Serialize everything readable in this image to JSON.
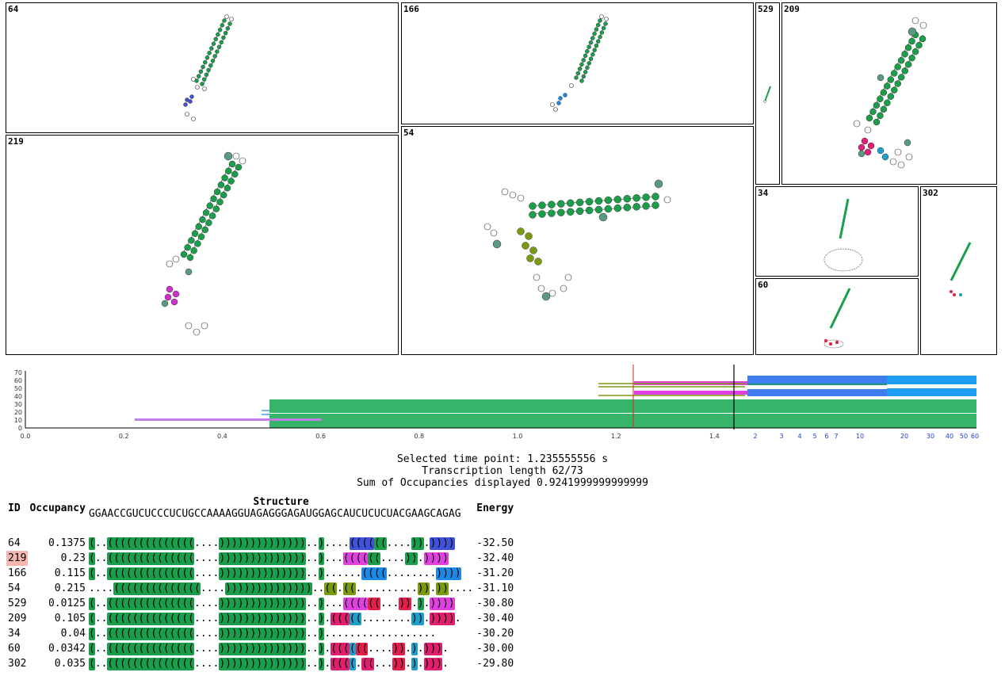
{
  "panels": [
    {
      "id": "64",
      "helix_colors": [
        "#1a9e4b",
        "#3f51d6",
        "#58a020"
      ]
    },
    {
      "id": "166",
      "helix_colors": [
        "#1a9e4b",
        "#1e88e5"
      ]
    },
    {
      "id": "529",
      "helix_colors": [
        "#1a9e4b"
      ]
    },
    {
      "id": "209",
      "helix_colors": [
        "#1a9e4b",
        "#e01e7c",
        "#1e9ec8"
      ]
    },
    {
      "id": "219",
      "helix_colors": [
        "#1a9e4b",
        "#cc33cc"
      ]
    },
    {
      "id": "54",
      "helix_colors": [
        "#1a9e4b",
        "#7a9a10"
      ]
    },
    {
      "id": "34",
      "helix_colors": [
        "#1a9e4b"
      ]
    },
    {
      "id": "302",
      "helix_colors": [
        "#1a9e4b",
        "#e0204a",
        "#1e9ec8"
      ]
    },
    {
      "id": "60",
      "helix_colors": [
        "#1a9e4b",
        "#e0204a"
      ]
    }
  ],
  "timeline": {
    "y_ticks": [
      "0",
      "10",
      "20",
      "30",
      "40",
      "50",
      "60",
      "70"
    ],
    "x_ticks_linear": [
      "0.0",
      "0.2",
      "0.4",
      "0.6",
      "0.8",
      "1.0",
      "1.2",
      "1.4"
    ],
    "x_ticks_log": [
      "2",
      "3",
      "4",
      "5",
      "6",
      "7",
      "10",
      "20",
      "30",
      "40",
      "50",
      "60"
    ],
    "selected_time": 1.235555556
  },
  "info": {
    "selected_label": "Selected time point: 1.235555556 s",
    "length_label": "Transcription length 62/73",
    "sum_label": "Sum of Occupancies displayed 0.9241999999999999"
  },
  "table": {
    "col_id": "ID",
    "col_occ": "Occupancy",
    "col_structure": "Structure",
    "sequence": "GGAACCGUCUCCCUCUGCCAAAAGGUAGAGGGAGAUGGAGCAUCUCUCUACGAAGCAGAG",
    "col_energy": "Energy",
    "highlight_id": "219",
    "rows": [
      {
        "id": "64",
        "occ": "0.1375",
        "energy": "-32.50",
        "segs": [
          [
            "(",
            "#1a9e4b"
          ],
          [
            "..",
            ""
          ],
          [
            "((((((((((((((",
            "#1a9e4b"
          ],
          [
            "....",
            ""
          ],
          [
            "))))))))))))))",
            "#1a9e4b"
          ],
          [
            "..",
            ""
          ],
          [
            ")",
            "#1a9e4b"
          ],
          [
            "....",
            ""
          ],
          [
            "((((",
            "#3f51d6"
          ],
          [
            "((",
            "#1a9e4b"
          ],
          [
            "....",
            ""
          ],
          [
            "))",
            "#1a9e4b"
          ],
          [
            ".",
            ""
          ],
          [
            "))))",
            "#3f51d6"
          ]
        ]
      },
      {
        "id": "219",
        "occ": "0.23",
        "energy": "-32.40",
        "segs": [
          [
            "(",
            "#1a9e4b"
          ],
          [
            "..",
            ""
          ],
          [
            "((((((((((((((",
            "#1a9e4b"
          ],
          [
            "....",
            ""
          ],
          [
            "))))))))))))))",
            "#1a9e4b"
          ],
          [
            "..",
            ""
          ],
          [
            ")",
            "#1a9e4b"
          ],
          [
            "...",
            ""
          ],
          [
            "((((",
            "#e040e0"
          ],
          [
            "((",
            "#1a9e4b"
          ],
          [
            "....",
            ""
          ],
          [
            "))",
            "#1a9e4b"
          ],
          [
            ".",
            ""
          ],
          [
            "))))",
            "#e040e0"
          ]
        ]
      },
      {
        "id": "166",
        "occ": "0.115",
        "energy": "-31.20",
        "segs": [
          [
            "(",
            "#1a9e4b"
          ],
          [
            "..",
            ""
          ],
          [
            "((((((((((((((",
            "#1a9e4b"
          ],
          [
            "....",
            ""
          ],
          [
            "))))))))))))))",
            "#1a9e4b"
          ],
          [
            "..",
            ""
          ],
          [
            ")",
            "#1a9e4b"
          ],
          [
            "......",
            ""
          ],
          [
            "((((",
            "#1e88e5"
          ],
          [
            "........",
            ""
          ],
          [
            "))))",
            "#1e88e5"
          ]
        ]
      },
      {
        "id": "54",
        "occ": "0.215",
        "energy": "-31.10",
        "segs": [
          [
            "....",
            ""
          ],
          [
            "((((((((((((((",
            "#1a9e4b"
          ],
          [
            "....",
            ""
          ],
          [
            "))))))))))))))",
            "#1a9e4b"
          ],
          [
            "..",
            ""
          ],
          [
            "((",
            "#7a9a10"
          ],
          [
            ".",
            ""
          ],
          [
            "((",
            "#7a9a10"
          ],
          [
            "..........",
            ""
          ],
          [
            "))",
            "#7a9a10"
          ],
          [
            ".",
            ""
          ],
          [
            "))",
            "#7a9a10"
          ],
          [
            "....",
            ""
          ]
        ]
      },
      {
        "id": "529",
        "occ": "0.0125",
        "energy": "-30.80",
        "segs": [
          [
            "(",
            "#1a9e4b"
          ],
          [
            "..",
            ""
          ],
          [
            "((((((((((((((",
            "#1a9e4b"
          ],
          [
            "....",
            ""
          ],
          [
            "))))))))))))))",
            "#1a9e4b"
          ],
          [
            "..",
            ""
          ],
          [
            ")",
            "#1a9e4b"
          ],
          [
            "...",
            ""
          ],
          [
            "((((",
            "#e040e0"
          ],
          [
            "((",
            "#e0204a"
          ],
          [
            "...",
            ""
          ],
          [
            "))",
            "#e0204a"
          ],
          [
            ".",
            ""
          ],
          [
            ")",
            "#1a9e4b"
          ],
          [
            ".",
            ""
          ],
          [
            "))))",
            "#e040e0"
          ]
        ]
      },
      {
        "id": "209",
        "occ": "0.105",
        "energy": "-30.40",
        "segs": [
          [
            "(",
            "#1a9e4b"
          ],
          [
            "..",
            ""
          ],
          [
            "((((((((((((((",
            "#1a9e4b"
          ],
          [
            "....",
            ""
          ],
          [
            "))))))))))))))",
            "#1a9e4b"
          ],
          [
            "..",
            ""
          ],
          [
            ")",
            "#1a9e4b"
          ],
          [
            ".",
            ""
          ],
          [
            "(((",
            "#e0206e"
          ],
          [
            "((",
            "#1e9ec8"
          ],
          [
            "........",
            ""
          ],
          [
            "))",
            "#1e9ec8"
          ],
          [
            ".",
            ""
          ],
          [
            "))))",
            "#e0206e"
          ],
          [
            ".",
            ""
          ]
        ]
      },
      {
        "id": "34",
        "occ": "0.04",
        "energy": "-30.20",
        "segs": [
          [
            "(",
            "#1a9e4b"
          ],
          [
            "..",
            ""
          ],
          [
            "((((((((((((((",
            "#1a9e4b"
          ],
          [
            "....",
            ""
          ],
          [
            "))))))))))))))",
            "#1a9e4b"
          ],
          [
            "..",
            ""
          ],
          [
            ")",
            "#1a9e4b"
          ],
          [
            "..................",
            ""
          ]
        ]
      },
      {
        "id": "60",
        "occ": "0.0342",
        "energy": "-30.00",
        "segs": [
          [
            "(",
            "#1a9e4b"
          ],
          [
            "..",
            ""
          ],
          [
            "((((((((((((((",
            "#1a9e4b"
          ],
          [
            "....",
            ""
          ],
          [
            "))))))))))))))",
            "#1a9e4b"
          ],
          [
            "..",
            ""
          ],
          [
            ")",
            "#1a9e4b"
          ],
          [
            ".",
            ""
          ],
          [
            "(((",
            "#e0206e"
          ],
          [
            "(",
            "#1e9ec8"
          ],
          [
            "((",
            "#e0204a"
          ],
          [
            "....",
            ""
          ],
          [
            "))",
            "#e0204a"
          ],
          [
            ".",
            ""
          ],
          [
            ")",
            "#1e9ec8"
          ],
          [
            ".",
            ""
          ],
          [
            ")))",
            "#e0206e"
          ],
          [
            ".",
            ""
          ]
        ]
      },
      {
        "id": "302",
        "occ": "0.035",
        "energy": "-29.80",
        "segs": [
          [
            "(",
            "#1a9e4b"
          ],
          [
            "..",
            ""
          ],
          [
            "((((((((((((((",
            "#1a9e4b"
          ],
          [
            "....",
            ""
          ],
          [
            "))))))))))))))",
            "#1a9e4b"
          ],
          [
            "..",
            ""
          ],
          [
            ")",
            "#1a9e4b"
          ],
          [
            ".",
            ""
          ],
          [
            "(((",
            "#e0206e"
          ],
          [
            "(",
            "#1e9ec8"
          ],
          [
            ".",
            ""
          ],
          [
            "((",
            "#e0206e"
          ],
          [
            "...",
            ""
          ],
          [
            "))",
            "#e0204a"
          ],
          [
            ".",
            ""
          ],
          [
            ")",
            "#1e9ec8"
          ],
          [
            ".",
            ""
          ],
          [
            ")))",
            "#e0206e"
          ],
          [
            ".",
            ""
          ]
        ]
      }
    ]
  }
}
